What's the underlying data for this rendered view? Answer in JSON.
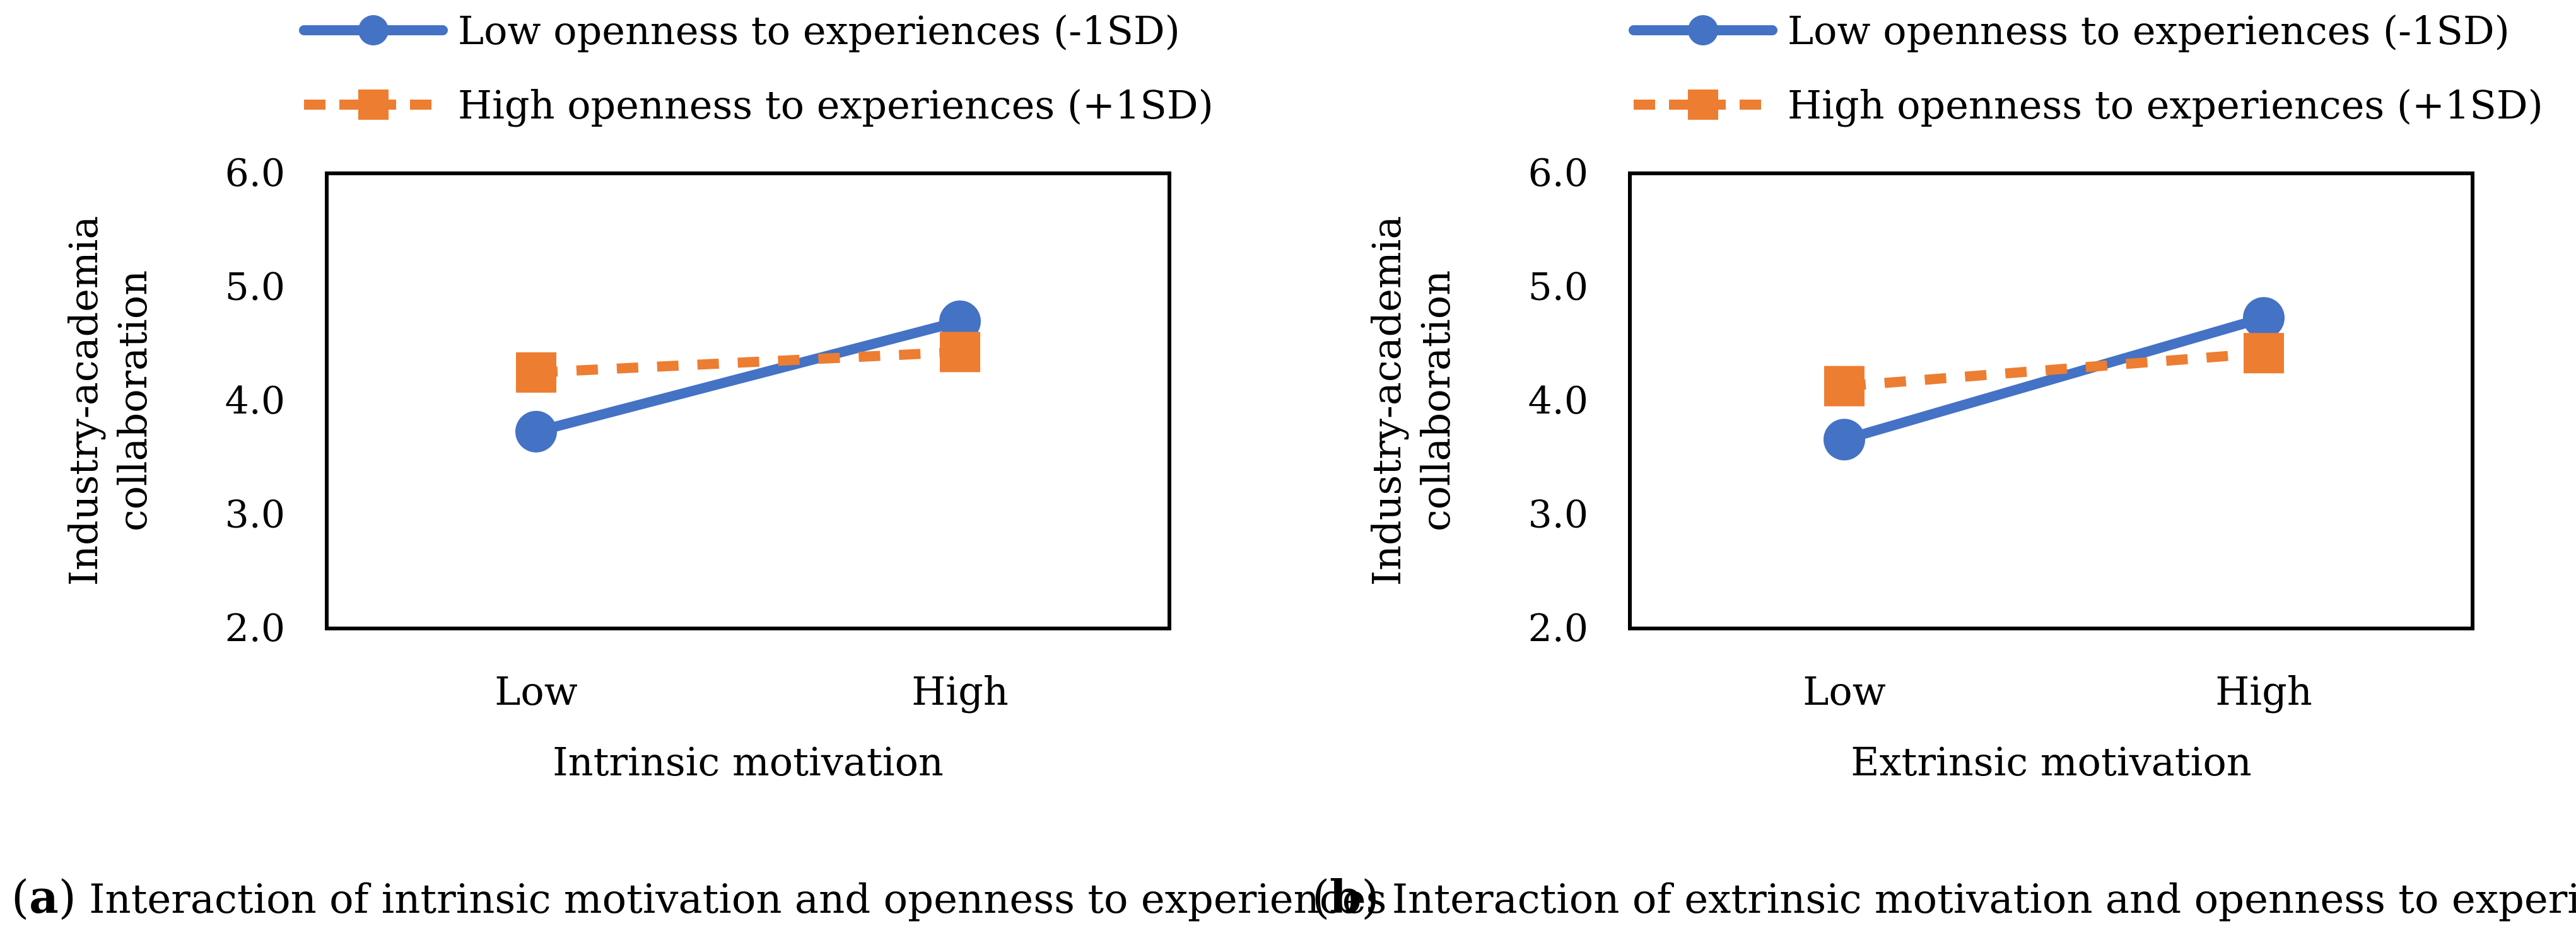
{
  "colors": {
    "low_series": "#4472C4",
    "high_series": "#ED7D31",
    "axis": "#000000"
  },
  "charts": [
    {
      "caption": {
        "letter": "a",
        "text": "Interaction of intrinsic motivation and openness to experiences"
      }
    },
    {
      "caption": {
        "letter": "b",
        "text": "Interaction of extrinsic motivation and openness to experiences"
      }
    }
  ],
  "chart_data": [
    {
      "type": "line",
      "categories": [
        "Low",
        "High"
      ],
      "xlabel": "Intrinsic motivation",
      "ylabel": "Industry-academia collaboration",
      "ylim": [
        2.0,
        6.0
      ],
      "yticks": [
        "2.0",
        "3.0",
        "4.0",
        "5.0",
        "6.0"
      ],
      "grid": false,
      "legend": "top-center",
      "series": [
        {
          "name": "Low openness to experiences (-1SD)",
          "values": [
            3.73,
            4.7
          ],
          "color": "#4472C4",
          "marker": "circle",
          "line": "solid"
        },
        {
          "name": "High openness to experiences (+1SD)",
          "values": [
            4.25,
            4.43
          ],
          "color": "#ED7D31",
          "marker": "square",
          "line": "dashed"
        }
      ]
    },
    {
      "type": "line",
      "categories": [
        "Low",
        "High"
      ],
      "xlabel": "Extrinsic motivation",
      "ylabel": "Industry-academia collaboration",
      "ylim": [
        2.0,
        6.0
      ],
      "yticks": [
        "2.0",
        "3.0",
        "4.0",
        "5.0",
        "6.0"
      ],
      "grid": false,
      "legend": "top-center",
      "series": [
        {
          "name": "Low openness to experiences (-1SD)",
          "values": [
            3.66,
            4.73
          ],
          "color": "#4472C4",
          "marker": "circle",
          "line": "solid"
        },
        {
          "name": "High openness to experiences (+1SD)",
          "values": [
            4.13,
            4.42
          ],
          "color": "#ED7D31",
          "marker": "square",
          "line": "dashed"
        }
      ]
    }
  ]
}
